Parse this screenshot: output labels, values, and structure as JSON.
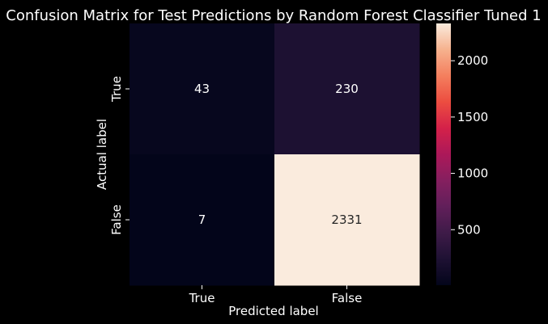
{
  "chart_data": {
    "type": "heatmap",
    "title": "Confusion Matrix for Test Predictions by Random Forest Classifier Tuned 1",
    "xlabel": "Predicted label",
    "ylabel": "Actual label",
    "x_categories": [
      "True",
      "False"
    ],
    "y_categories": [
      "True",
      "False"
    ],
    "values": [
      [
        43,
        230
      ],
      [
        7,
        2331
      ]
    ],
    "colormap": "rocket",
    "colorbar": {
      "range": [
        7,
        2331
      ],
      "ticks": [
        500,
        1000,
        1500,
        2000
      ]
    }
  }
}
